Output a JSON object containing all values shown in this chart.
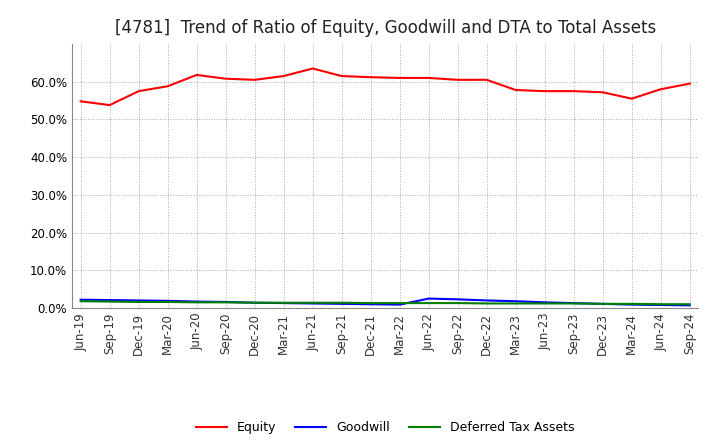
{
  "title": "[4781]  Trend of Ratio of Equity, Goodwill and DTA to Total Assets",
  "x_labels": [
    "Jun-19",
    "Sep-19",
    "Dec-19",
    "Mar-20",
    "Jun-20",
    "Sep-20",
    "Dec-20",
    "Mar-21",
    "Jun-21",
    "Sep-21",
    "Dec-21",
    "Mar-22",
    "Jun-22",
    "Sep-22",
    "Dec-22",
    "Mar-23",
    "Jun-23",
    "Sep-23",
    "Dec-23",
    "Mar-24",
    "Jun-24",
    "Sep-24"
  ],
  "equity": [
    54.8,
    53.8,
    57.5,
    58.8,
    61.8,
    60.8,
    60.5,
    61.5,
    63.5,
    61.5,
    61.2,
    61.0,
    61.0,
    60.5,
    60.5,
    57.8,
    57.5,
    57.5,
    57.2,
    55.5,
    58.0,
    59.5
  ],
  "goodwill": [
    2.2,
    2.1,
    2.0,
    1.9,
    1.7,
    1.6,
    1.4,
    1.3,
    1.2,
    1.1,
    1.0,
    0.9,
    2.5,
    2.3,
    2.0,
    1.8,
    1.5,
    1.3,
    1.1,
    0.9,
    0.8,
    0.7
  ],
  "dta": [
    1.8,
    1.7,
    1.6,
    1.6,
    1.5,
    1.5,
    1.4,
    1.4,
    1.4,
    1.4,
    1.3,
    1.3,
    1.3,
    1.3,
    1.2,
    1.2,
    1.2,
    1.2,
    1.1,
    1.1,
    1.0,
    1.0
  ],
  "equity_color": "#ff0000",
  "goodwill_color": "#0000ff",
  "dta_color": "#008000",
  "ylim": [
    0,
    70
  ],
  "yticks": [
    0.0,
    10.0,
    20.0,
    30.0,
    40.0,
    50.0,
    60.0
  ],
  "background_color": "#ffffff",
  "grid_color": "#aaaaaa",
  "title_fontsize": 12,
  "tick_fontsize": 8.5,
  "legend_fontsize": 9
}
